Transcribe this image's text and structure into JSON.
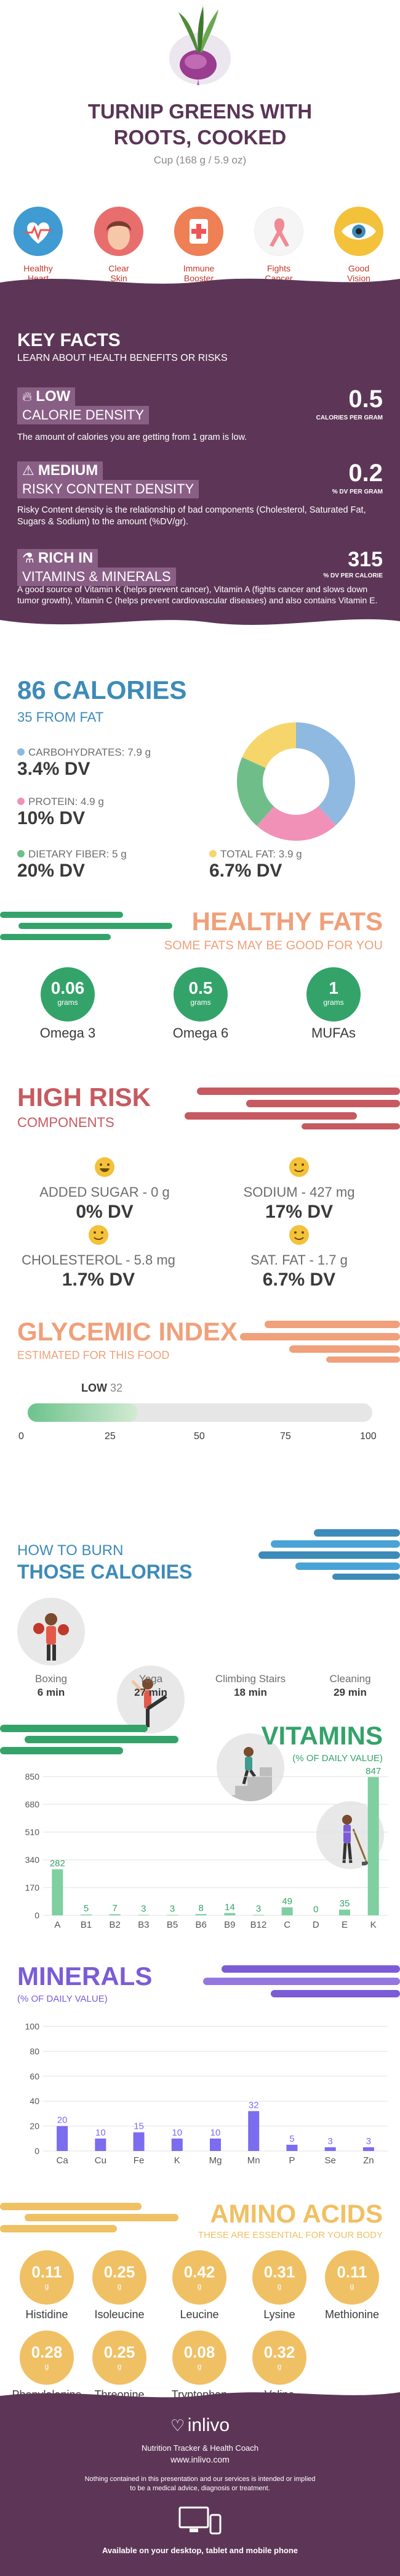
{
  "header": {
    "title_line1": "TURNIP GREENS WITH",
    "title_line2": "ROOTS, COOKED",
    "serving": "Cup (168 g / 5.9 oz)"
  },
  "benefits": [
    {
      "line1": "Healthy",
      "line2": "Heart",
      "icon": "heart-icon",
      "color": "#3f9bd1"
    },
    {
      "line1": "Clear",
      "line2": "Skin",
      "icon": "face-icon",
      "color": "#e86d6d"
    },
    {
      "line1": "Immune",
      "line2": "Booster",
      "icon": "immune-icon",
      "color": "#ef7f54"
    },
    {
      "line1": "Fights",
      "line2": "Cancer",
      "icon": "ribbon-icon",
      "color": "#f5f5f5"
    },
    {
      "line1": "Good",
      "line2": "Vision",
      "icon": "eye-icon",
      "color": "#f3c13a"
    }
  ],
  "key_facts": {
    "title": "KEY FACTS",
    "subtitle": "LEARN ABOUT HEALTH BENEFITS OR RISKS",
    "items": [
      {
        "level": "LOW",
        "label": "CALORIE DENSITY",
        "value": "0.5",
        "unit": "CALORIES PER GRAM",
        "desc": "The amount of calories you are getting from 1 gram is low."
      },
      {
        "level": "MEDIUM",
        "label": "RISKY CONTENT DENSITY",
        "value": "0.2",
        "unit": "% DV PER GRAM",
        "desc": "Risky Content density is the relationship of bad components (Cholesterol, Saturated Fat, Sugars & Sodium) to the amount (%DV/gr)."
      },
      {
        "level": "RICH IN",
        "label": "VITAMINS & MINERALS",
        "value": "315",
        "unit": "% DV PER CALORIE",
        "desc": "A good source of Vitamin K (helps prevent cancer), Vitamin A (fights cancer and slows down tumor growth), Vitamin C (helps prevent cardiovascular diseases) and also contains Vitamin E."
      }
    ]
  },
  "calories": {
    "title": "86 CALORIES",
    "from_fat": "35 FROM FAT",
    "macros": [
      {
        "label": "CARBOHYDRATES: 7.9 g",
        "dv": "3.4% DV",
        "color": "#8fb9e0"
      },
      {
        "label": "PROTEIN: 4.9 g",
        "dv": "10% DV",
        "color": "#f291b8"
      },
      {
        "label": "DIETARY FIBER: 5 g",
        "dv": "20% DV",
        "color": "#6fbe8a"
      },
      {
        "label": "TOTAL FAT: 3.9 g",
        "dv": "6.7% DV",
        "color": "#f6d56b"
      }
    ]
  },
  "healthy_fats": {
    "title": "HEALTHY FATS",
    "subtitle": "SOME FATS MAY BE GOOD FOR YOU",
    "items": [
      {
        "value": "0.06",
        "unit": "grams",
        "name": "Omega 3"
      },
      {
        "value": "0.5",
        "unit": "grams",
        "name": "Omega 6"
      },
      {
        "value": "1",
        "unit": "grams",
        "name": "MUFAs"
      }
    ]
  },
  "high_risk": {
    "title": "HIGH RISK",
    "subtitle": "COMPONENTS",
    "items": [
      {
        "label": "ADDED SUGAR - 0 g",
        "dv": "0% DV"
      },
      {
        "label": "SODIUM - 427 mg",
        "dv": "17% DV"
      },
      {
        "label": "CHOLESTEROL - 5.8 mg",
        "dv": "1.7% DV"
      },
      {
        "label": "SAT. FAT - 1.7 g",
        "dv": "6.7% DV"
      }
    ]
  },
  "glycemic": {
    "title": "GLYCEMIC INDEX",
    "subtitle": "ESTIMATED FOR THIS FOOD",
    "level": "LOW",
    "value_label": "32",
    "value": 32,
    "max": 100,
    "ticks": [
      "0",
      "25",
      "50",
      "75",
      "100"
    ]
  },
  "burn": {
    "title1": "HOW TO BURN",
    "title2": "THOSE CALORIES",
    "items": [
      {
        "name": "Boxing",
        "time": "6 min"
      },
      {
        "name": "Yoga",
        "time": "27 min"
      },
      {
        "name": "Climbing Stairs",
        "time": "18 min"
      },
      {
        "name": "Cleaning",
        "time": "29 min"
      }
    ]
  },
  "chart_data": [
    {
      "type": "bar",
      "title": "VITAMINS",
      "subtitle": "(% OF DAILY VALUE)",
      "categories": [
        "A",
        "B1",
        "B2",
        "B3",
        "B5",
        "B6",
        "B9",
        "B12",
        "C",
        "D",
        "E",
        "K"
      ],
      "values": [
        282,
        5,
        7,
        3,
        3,
        8,
        14,
        3,
        49,
        0,
        35,
        847
      ],
      "value_labels": [
        "282",
        "5",
        "7",
        "3",
        "3",
        "8",
        "14",
        "3",
        "49",
        "0",
        "35",
        "847"
      ],
      "yticks": [
        "850",
        "680",
        "510",
        "340",
        "170",
        "0"
      ],
      "ylim": [
        0,
        850
      ]
    },
    {
      "type": "bar",
      "title": "MINERALS",
      "subtitle": "(% OF DAILY VALUE)",
      "categories": [
        "Ca",
        "Cu",
        "Fe",
        "K",
        "Mg",
        "Mn",
        "P",
        "Se",
        "Zn"
      ],
      "values": [
        20,
        10,
        15,
        10,
        10,
        32,
        5,
        3,
        3
      ],
      "value_labels": [
        "20",
        "10",
        "15",
        "10",
        "10",
        "32",
        "5",
        "3",
        "3"
      ],
      "yticks": [
        "100",
        "80",
        "60",
        "40",
        "20",
        "0"
      ],
      "ylim": [
        0,
        100
      ]
    }
  ],
  "amino": {
    "title": "AMINO ACIDS",
    "subtitle": "THESE ARE ESSENTIAL FOR YOUR BODY",
    "items": [
      {
        "value": "0.11",
        "unit": "g",
        "name": "Histidine"
      },
      {
        "value": "0.25",
        "unit": "g",
        "name": "Isoleucine"
      },
      {
        "value": "0.42",
        "unit": "g",
        "name": "Leucine"
      },
      {
        "value": "0.31",
        "unit": "g",
        "name": "Lysine"
      },
      {
        "value": "0.11",
        "unit": "g",
        "name": "Methionine"
      },
      {
        "value": "0.28",
        "unit": "g",
        "name": "Phenylalanine"
      },
      {
        "value": "0.25",
        "unit": "g",
        "name": "Threonine"
      },
      {
        "value": "0.08",
        "unit": "g",
        "name": "Tryptophan"
      },
      {
        "value": "0.32",
        "unit": "g",
        "name": "Valine"
      }
    ]
  },
  "footer": {
    "brand": "inlivo",
    "tagline": "Nutrition Tracker & Health Coach",
    "url": "www.inlivo.com",
    "disclaimer1": "Nothing contained in this presentation and our services is intended or implied",
    "disclaimer2": "to be a medical advice, diagnosis or treatment.",
    "available": "Available on your desktop, tablet and mobile phone"
  },
  "colors": {
    "purple": "#5d3657",
    "blue": "#3d8bb8",
    "green": "#34a36a",
    "orange": "#f0a07a",
    "red": "#c65a60",
    "violet": "#7b5cd6",
    "gold": "#f0c064"
  }
}
